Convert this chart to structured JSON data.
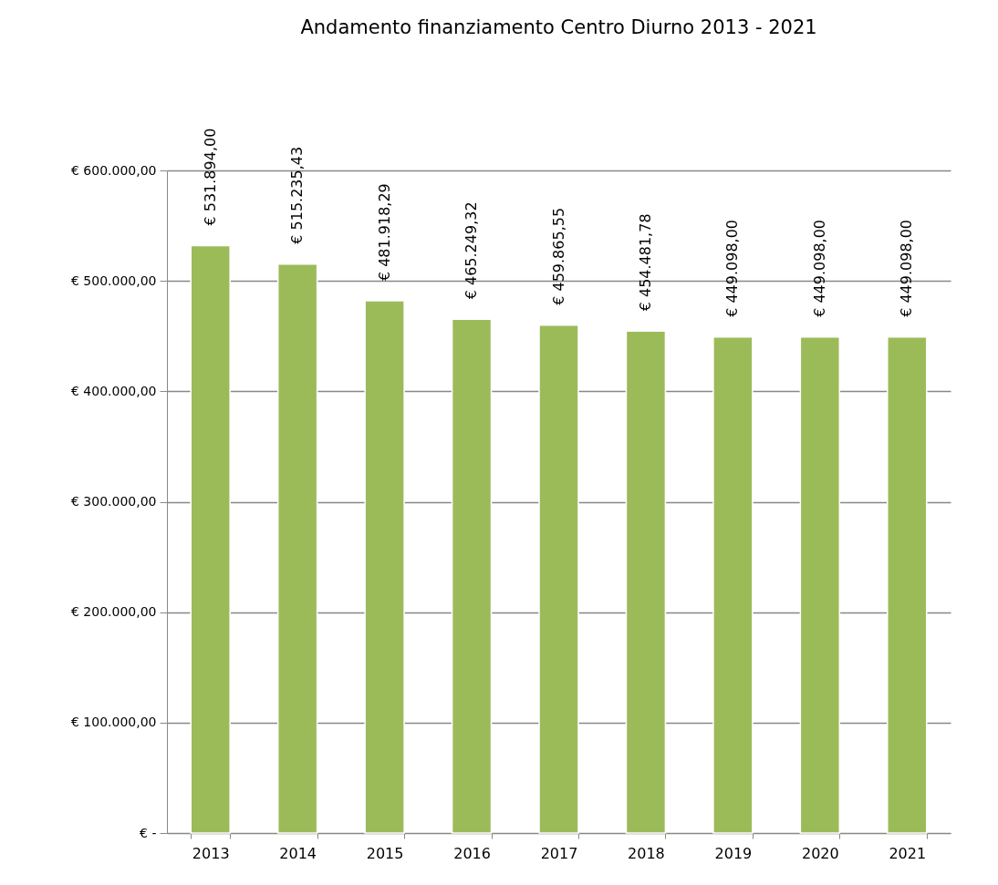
{
  "chart_data": {
    "type": "bar",
    "title": "Andamento finanziamento Centro Diurno 2013 - 2021",
    "categories": [
      "2013",
      "2014",
      "2015",
      "2016",
      "2017",
      "2018",
      "2019",
      "2020",
      "2021"
    ],
    "values": [
      531894.0,
      515235.43,
      481918.29,
      465249.32,
      459865.55,
      454481.78,
      449098.0,
      449098.0,
      449098.0
    ],
    "value_labels": [
      "€ 531.894,00",
      "€ 515.235,43",
      "€ 481.918,29",
      "€ 465.249,32",
      "€ 459.865,55",
      "€ 454.481,78",
      "€ 449.098,00",
      "€ 449.098,00",
      "€ 449.098,00"
    ],
    "color": "#9bbb59",
    "ylim": [
      0,
      600000
    ],
    "yticks": [
      {
        "value": 0,
        "label": "€ -"
      },
      {
        "value": 100000,
        "label": "€ 100.000,00"
      },
      {
        "value": 200000,
        "label": "€ 200.000,00"
      },
      {
        "value": 300000,
        "label": "€ 300.000,00"
      },
      {
        "value": 400000,
        "label": "€ 400.000,00"
      },
      {
        "value": 500000,
        "label": "€ 500.000,00"
      },
      {
        "value": 600000,
        "label": "€ 600.000,00"
      }
    ],
    "grid": "y"
  }
}
